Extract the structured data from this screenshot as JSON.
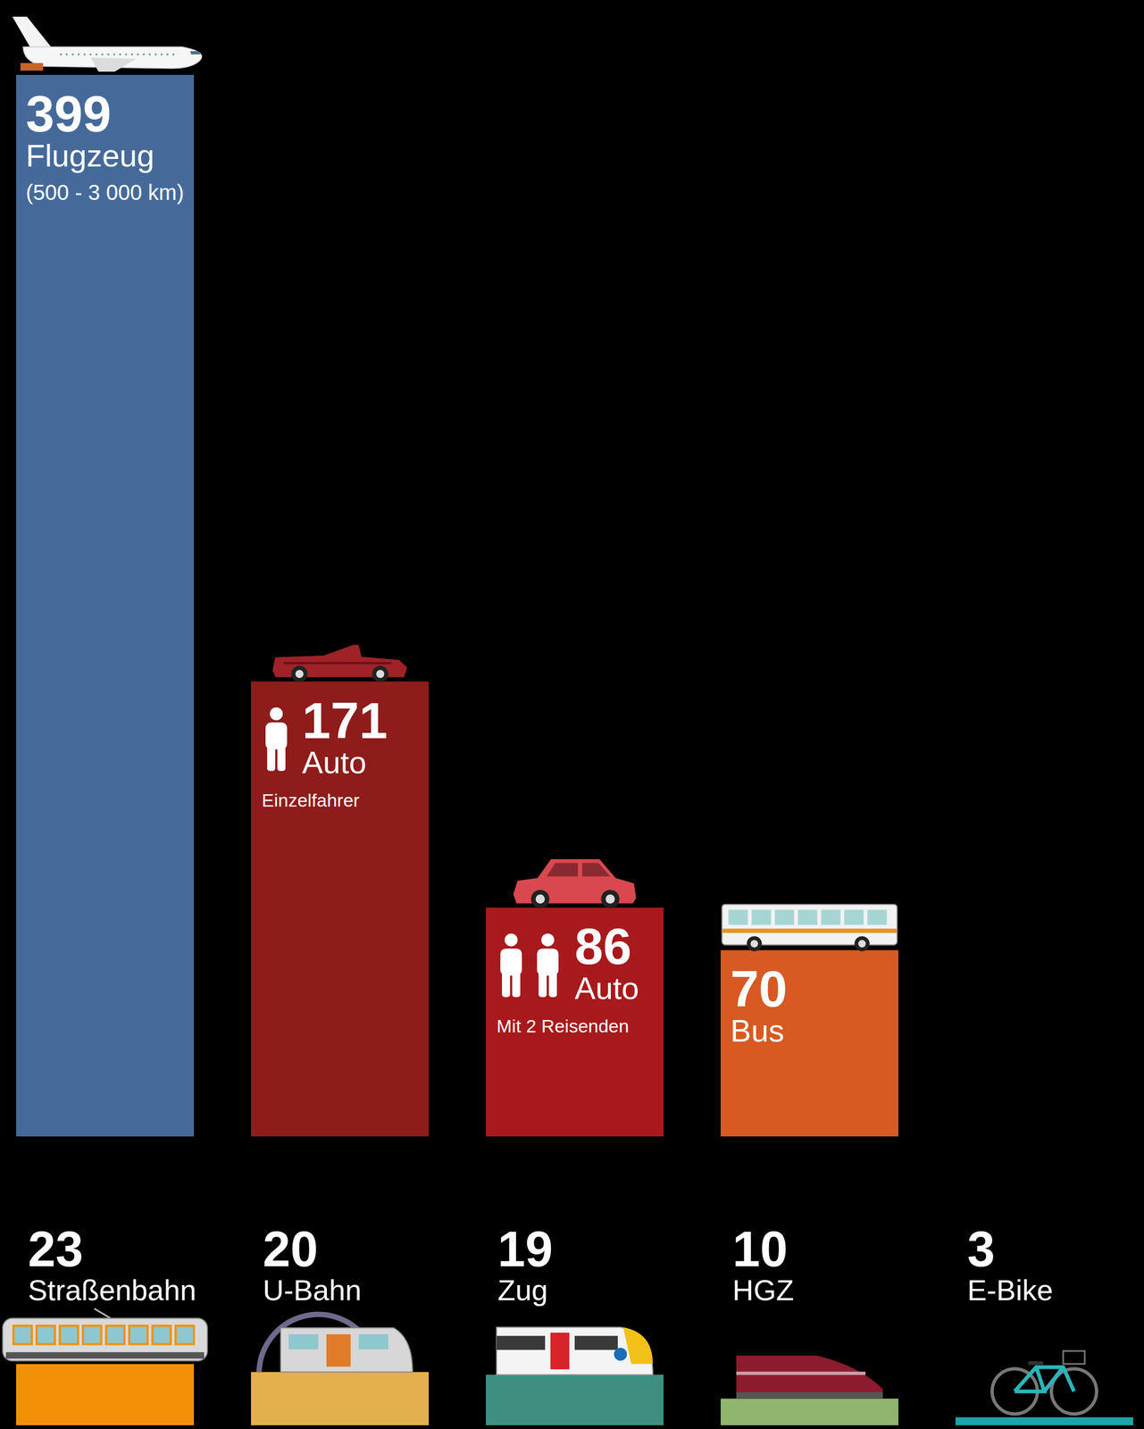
{
  "chart_data": {
    "type": "bar",
    "categories": [
      "Flugzeug",
      "Auto",
      "Auto",
      "Bus",
      "Straßenbahn",
      "U-Bahn",
      "Zug",
      "HGZ",
      "E-Bike"
    ],
    "sublabels": [
      "(500 - 3 000 km)",
      "Einzelfahrer",
      "Mit 2 Reisenden",
      null,
      null,
      null,
      null,
      null,
      null
    ],
    "values": [
      399,
      171,
      86,
      70,
      23,
      20,
      19,
      10,
      3
    ],
    "colors": [
      "#456a9a",
      "#8e1c1a",
      "#a8191b",
      "#d65a22",
      "#f29108",
      "#e4b04d",
      "#3f8f80",
      "#8fb56e",
      "#19a5aa"
    ],
    "data_labels": true,
    "tick_labels": false
  }
}
